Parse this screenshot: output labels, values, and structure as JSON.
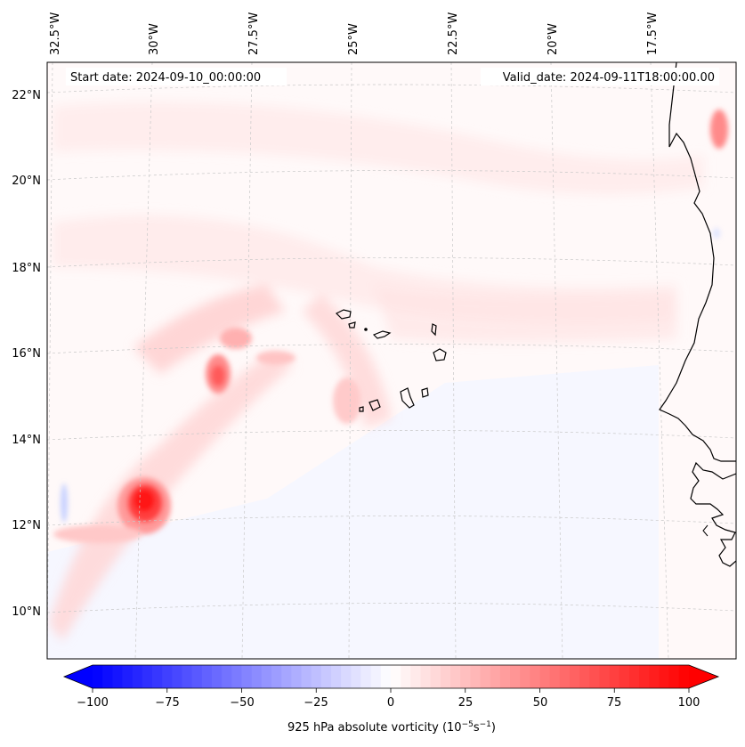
{
  "map": {
    "projection": "rotated lat-lon",
    "start_label": "Start date: 2024-09-10_00:00:00",
    "valid_label": "Valid_date: 2024-09-11T18:00:00.00",
    "lon_labels": [
      "32.5°W",
      "30°W",
      "27.5°W",
      "25°W",
      "22.5°W",
      "20°W",
      "17.5°W"
    ],
    "lat_labels": [
      "22°N",
      "20°N",
      "18°N",
      "16°N",
      "14°N",
      "12°N",
      "10°N"
    ],
    "features": [
      "West African coastline",
      "Cabo Verde islands"
    ]
  },
  "colorbar": {
    "label": "925 hPa absolute vorticity (10",
    "label_exp1": "−5",
    "label_mid": "s",
    "label_exp2": "−1",
    "label_end": ")",
    "ticks": [
      "−100",
      "−75",
      "−50",
      "−25",
      "0",
      "25",
      "50",
      "75",
      "100"
    ],
    "min": -100,
    "max": 100,
    "levels": 60,
    "colormap": "bwr",
    "low_color": "#0000ff",
    "high_color": "#ff0000"
  }
}
